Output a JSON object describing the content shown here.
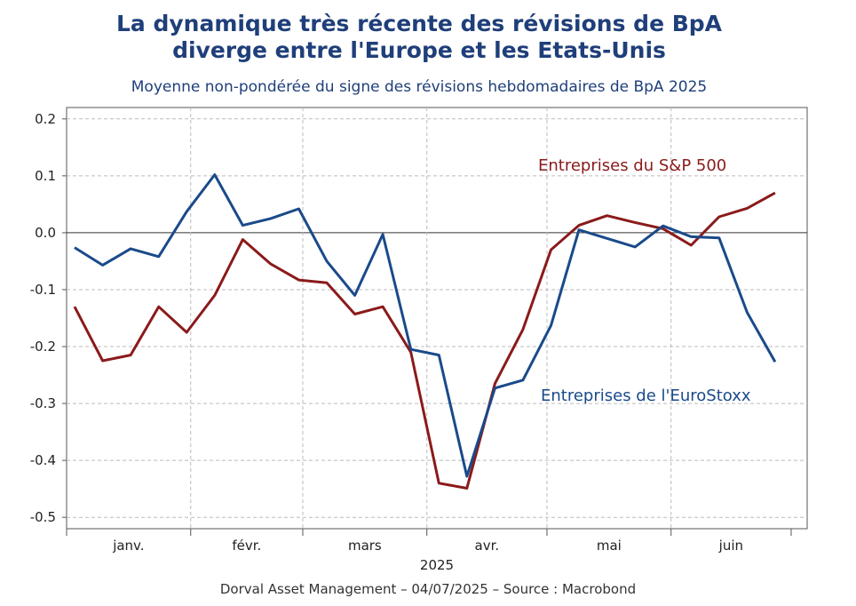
{
  "colors": {
    "sp500": "#8b1a1a",
    "eurostoxx": "#1a4a8a",
    "title": "#1f3f7a"
  },
  "footer": "Dorval Asset Management – 04/07/2025 –   Source : Macrobond",
  "chart_data": {
    "type": "line",
    "title_line1": "La dynamique très récente des révisions de BpA",
    "title_line2": "diverge entre l'Europe et les Etats-Unis",
    "subtitle": "Moyenne non-pondérée du signe des révisions hebdomadaires de BpA 2025",
    "ylim": [
      -0.52,
      0.22
    ],
    "yticks": [
      0.2,
      0.1,
      0.0,
      -0.1,
      -0.2,
      -0.3,
      -0.4,
      -0.5
    ],
    "ytick_labels": [
      "0.2",
      "0.1",
      "0.0",
      "-0.1",
      "-0.2",
      "-0.3",
      "-0.4",
      "-0.5"
    ],
    "xlim": [
      "2025-01-01",
      "2025-07-05"
    ],
    "xtick_labels": [
      "janv.",
      "févr.",
      "mars",
      "avr.",
      "mai",
      "juin"
    ],
    "xlabel_year": "2025",
    "grid": true,
    "series": [
      {
        "name": "Entreprises du S&P 500",
        "color": "#8b1a1a",
        "points": [
          [
            "2025-01-03",
            -0.13
          ],
          [
            "2025-01-10",
            -0.225
          ],
          [
            "2025-01-17",
            -0.215
          ],
          [
            "2025-01-24",
            -0.13
          ],
          [
            "2025-01-31",
            -0.175
          ],
          [
            "2025-02-07",
            -0.11
          ],
          [
            "2025-02-14",
            -0.012
          ],
          [
            "2025-02-21",
            -0.055
          ],
          [
            "2025-02-28",
            -0.083
          ],
          [
            "2025-03-07",
            -0.088
          ],
          [
            "2025-03-14",
            -0.143
          ],
          [
            "2025-03-21",
            -0.13
          ],
          [
            "2025-03-28",
            -0.21
          ],
          [
            "2025-04-04",
            -0.44
          ],
          [
            "2025-04-11",
            -0.449
          ],
          [
            "2025-04-18",
            -0.265
          ],
          [
            "2025-04-25",
            -0.17
          ],
          [
            "2025-05-02",
            -0.03
          ],
          [
            "2025-05-09",
            0.013
          ],
          [
            "2025-05-16",
            0.03
          ],
          [
            "2025-05-23",
            0.018
          ],
          [
            "2025-05-30",
            0.007
          ],
          [
            "2025-06-06",
            -0.022
          ],
          [
            "2025-06-13",
            0.028
          ],
          [
            "2025-06-20",
            0.043
          ],
          [
            "2025-06-27",
            0.07
          ]
        ]
      },
      {
        "name": "Entreprises de l'EuroStoxx",
        "color": "#1a4a8a",
        "points": [
          [
            "2025-01-03",
            -0.026
          ],
          [
            "2025-01-10",
            -0.057
          ],
          [
            "2025-01-17",
            -0.028
          ],
          [
            "2025-01-24",
            -0.042
          ],
          [
            "2025-01-31",
            0.037
          ],
          [
            "2025-02-07",
            0.102
          ],
          [
            "2025-02-14",
            0.013
          ],
          [
            "2025-02-21",
            0.025
          ],
          [
            "2025-02-28",
            0.042
          ],
          [
            "2025-03-07",
            -0.05
          ],
          [
            "2025-03-14",
            -0.11
          ],
          [
            "2025-03-21",
            -0.003
          ],
          [
            "2025-03-28",
            -0.205
          ],
          [
            "2025-04-04",
            -0.215
          ],
          [
            "2025-04-11",
            -0.428
          ],
          [
            "2025-04-18",
            -0.273
          ],
          [
            "2025-04-25",
            -0.259
          ],
          [
            "2025-05-02",
            -0.163
          ],
          [
            "2025-05-09",
            0.005
          ],
          [
            "2025-05-16",
            -0.01
          ],
          [
            "2025-05-23",
            -0.025
          ],
          [
            "2025-05-30",
            0.012
          ],
          [
            "2025-06-06",
            -0.007
          ],
          [
            "2025-06-13",
            -0.009
          ],
          [
            "2025-06-20",
            -0.14
          ],
          [
            "2025-06-27",
            -0.227
          ]
        ]
      }
    ]
  }
}
